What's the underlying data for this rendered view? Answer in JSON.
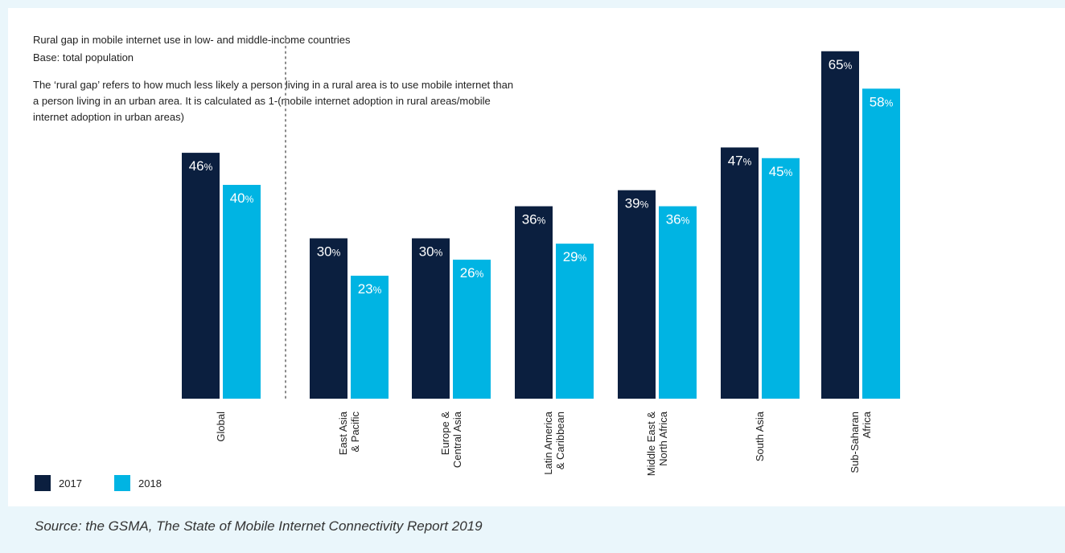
{
  "chart_data": {
    "type": "bar",
    "title": "Rural gap in mobile internet use in low- and middle-income countries",
    "subtitle": "Base: total population",
    "note": "The ‘rural gap’ refers to how much less likely a person living in a rural area is to use mobile internet than a person living in an urban area. It is calculated as 1-(mobile internet adoption in rural areas/mobile internet adoption in urban areas)",
    "categories": [
      [
        "Global"
      ],
      [
        "East Asia",
        "& Pacific"
      ],
      [
        "Europe &",
        "Central Asia"
      ],
      [
        "Latin America",
        "& Caribbean"
      ],
      [
        "Middle East &",
        "North Africa"
      ],
      [
        "South Asia"
      ],
      [
        "Sub-Saharan",
        "Africa"
      ]
    ],
    "series": [
      {
        "name": "2017",
        "color": "#0b1f3f",
        "values": [
          46,
          30,
          30,
          36,
          39,
          47,
          65
        ]
      },
      {
        "name": "2018",
        "color": "#00b4e3",
        "values": [
          40,
          23,
          26,
          29,
          36,
          45,
          58
        ]
      }
    ],
    "value_suffix": "%",
    "ylim": [
      0,
      65
    ],
    "legend_position": "bottom-left",
    "source": "Source: the GSMA, The State of Mobile Internet Connectivity Report 2019"
  }
}
